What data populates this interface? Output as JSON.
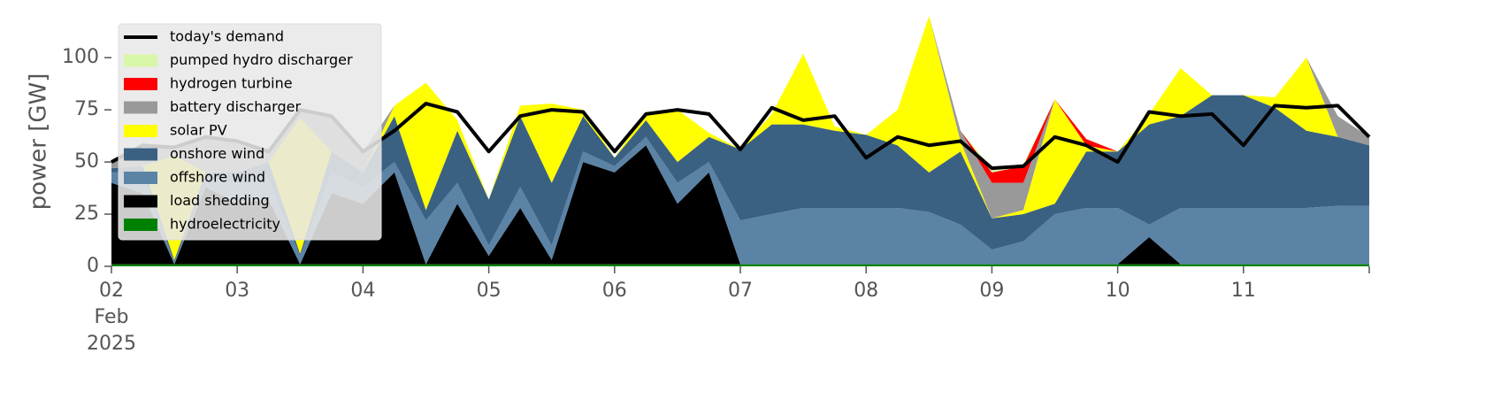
{
  "chart_data": {
    "type": "stacked_area",
    "ylabel": "power [GW]",
    "x": [
      0,
      0.25,
      0.5,
      0.75,
      1,
      1.25,
      1.5,
      1.75,
      2,
      2.25,
      2.5,
      2.75,
      3,
      3.25,
      3.5,
      3.75,
      4,
      4.25,
      4.5,
      4.75,
      5,
      5.25,
      5.5,
      5.75,
      6,
      6.25,
      6.5,
      6.75,
      7,
      7.25,
      7.5,
      7.75,
      8,
      8.25,
      8.5,
      8.75,
      9,
      9.25,
      9.5,
      9.75,
      10
    ],
    "xlim": [
      0,
      10
    ],
    "xticks": [
      {
        "value": 0,
        "label": "02\nFeb\n2025"
      },
      {
        "value": 1,
        "label": "03"
      },
      {
        "value": 2,
        "label": "04"
      },
      {
        "value": 3,
        "label": "05"
      },
      {
        "value": 4,
        "label": "06"
      },
      {
        "value": 5,
        "label": "07"
      },
      {
        "value": 6,
        "label": "08"
      },
      {
        "value": 7,
        "label": "09"
      },
      {
        "value": 8,
        "label": "10"
      },
      {
        "value": 9,
        "label": "11"
      }
    ],
    "ylim": [
      0,
      120
    ],
    "yticks": [
      0,
      25,
      50,
      75,
      100
    ],
    "legend": "upper left",
    "series": [
      {
        "name": "hydroelectricity",
        "color": "#008000",
        "values": [
          1,
          1,
          1,
          1,
          1,
          1,
          1,
          1,
          1,
          1,
          1,
          1,
          1,
          1,
          1,
          1,
          1,
          1,
          1,
          1,
          1,
          1,
          1,
          1,
          1,
          1,
          1,
          1,
          1,
          1,
          1,
          1,
          1,
          1,
          1,
          1,
          1,
          1,
          1,
          1,
          1
        ]
      },
      {
        "name": "load shedding",
        "color": "#000000",
        "values": [
          39,
          34,
          0,
          37,
          29,
          31,
          0,
          34,
          29,
          44,
          0,
          29,
          4,
          27,
          2,
          49,
          44,
          57,
          29,
          44,
          0,
          0,
          0,
          0,
          0,
          0,
          0,
          0,
          0,
          0,
          0,
          0,
          0,
          13,
          0,
          0,
          0,
          0,
          0,
          0,
          0
        ]
      },
      {
        "name": "offshore wind",
        "color": "#5b83a6",
        "values": [
          5,
          10,
          1,
          4,
          10,
          10,
          4,
          10,
          8,
          5,
          21,
          10,
          5,
          10,
          7,
          5,
          3,
          4,
          10,
          5,
          21,
          24,
          27,
          27,
          27,
          27,
          25,
          19,
          7,
          11,
          24,
          27,
          27,
          6,
          27,
          27,
          27,
          27,
          27,
          28,
          28
        ]
      },
      {
        "name": "onshore wind",
        "color": "#3b6182",
        "values": [
          2,
          3,
          1,
          3,
          5,
          8,
          1,
          10,
          7,
          22,
          5,
          25,
          22,
          34,
          30,
          17,
          4,
          8,
          10,
          12,
          34,
          43,
          40,
          37,
          35,
          30,
          19,
          35,
          15,
          13,
          5,
          27,
          27,
          48,
          44,
          54,
          54,
          48,
          37,
          33,
          29
        ]
      },
      {
        "name": "solar PV",
        "color": "#ffff00",
        "values": [
          0,
          0,
          50,
          0,
          0,
          0,
          65,
          0,
          0,
          5,
          61,
          5,
          0,
          5,
          38,
          3,
          0,
          4,
          25,
          2,
          0,
          5,
          34,
          2,
          0,
          17,
          75,
          5,
          0,
          2,
          50,
          3,
          0,
          5,
          23,
          0,
          0,
          5,
          35,
          0,
          0
        ]
      },
      {
        "name": "battery discharger",
        "color": "#999999",
        "values": [
          3,
          10,
          5,
          17,
          15,
          5,
          4,
          17,
          10,
          0,
          0,
          0,
          0,
          0,
          0,
          0,
          0,
          0,
          0,
          0,
          0,
          0,
          0,
          0,
          0,
          0,
          0,
          5,
          17,
          13,
          0,
          0,
          0,
          0,
          0,
          0,
          0,
          0,
          0,
          10,
          4
        ]
      },
      {
        "name": "hydrogen turbine",
        "color": "#ff0000",
        "values": [
          0,
          0,
          0,
          0,
          0,
          0,
          0,
          0,
          0,
          0,
          0,
          0,
          0,
          0,
          0,
          0,
          0,
          0,
          0,
          0,
          0,
          0,
          0,
          0,
          0,
          0,
          0,
          0,
          5,
          8,
          0,
          3,
          0,
          0,
          0,
          0,
          0,
          0,
          0,
          0,
          0
        ]
      },
      {
        "name": "pumped hydro discharger",
        "color": "#d9f7a8",
        "values": [
          0,
          0,
          0,
          0,
          0,
          0,
          0,
          0,
          0,
          0,
          0,
          0,
          0,
          0,
          0,
          0,
          0,
          0,
          0,
          0,
          0,
          0,
          0,
          0,
          0,
          0,
          0,
          0,
          2,
          1,
          0,
          0,
          0,
          0,
          0,
          0,
          0,
          0,
          0,
          0,
          0
        ]
      }
    ],
    "line": {
      "name": "today's demand",
      "color": "#000000",
      "values": [
        50,
        58,
        57,
        62,
        60,
        55,
        75,
        72,
        55,
        65,
        78,
        74,
        55,
        72,
        75,
        74,
        55,
        73,
        75,
        73,
        56,
        76,
        70,
        72,
        52,
        62,
        58,
        60,
        47,
        48,
        62,
        58,
        50,
        74,
        72,
        73,
        58,
        77,
        76,
        77,
        62
      ]
    }
  }
}
